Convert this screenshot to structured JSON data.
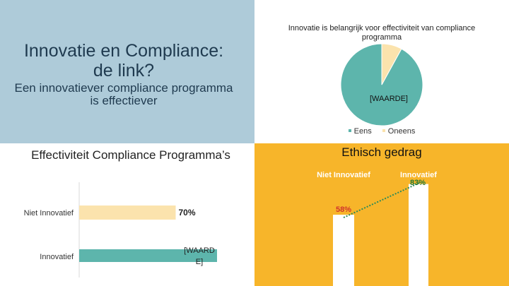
{
  "slide": {
    "title": "Innovatie en Compliance: de link?",
    "subtitle": "Een innovatiever compliance programma is effectiever"
  },
  "colors": {
    "teal": "#5db5ac",
    "cream": "#fbe3ad",
    "panel_blue": "#aecbd9",
    "panel_orange": "#f7b52a",
    "white": "#ffffff",
    "red_label": "#d0342c",
    "green_label": "#1f7a3a",
    "green_trend": "#2e8b57"
  },
  "chart_data": [
    {
      "type": "pie",
      "title": "Innovatie is belangrijk voor effectiviteit van compliance programma",
      "slices": [
        {
          "name": "Eens",
          "value": 92,
          "label": "[WAARDE]",
          "color": "#5db5ac"
        },
        {
          "name": "Oneens",
          "value": 8,
          "label": "",
          "color": "#fbe3ad"
        }
      ],
      "legend": [
        "Eens",
        "Oneens"
      ],
      "legend_position": "bottom"
    },
    {
      "type": "bar",
      "orientation": "horizontal",
      "title": "Effectiviteit Compliance Programma’s",
      "categories": [
        "Niet Innovatief",
        "Innovatief"
      ],
      "values": [
        70,
        100
      ],
      "data_labels": [
        "70%",
        "[WAARDE]"
      ],
      "colors": [
        "#fbe3ad",
        "#5db5ac"
      ],
      "xlim": [
        0,
        100
      ]
    },
    {
      "type": "bar",
      "title": "Ethisch gedrag",
      "categories": [
        "Niet Innovatief",
        "Innovatief"
      ],
      "values": [
        58,
        83
      ],
      "data_labels": [
        "58%",
        "83%"
      ],
      "ylim": [
        0,
        100
      ],
      "trendline": true
    }
  ]
}
